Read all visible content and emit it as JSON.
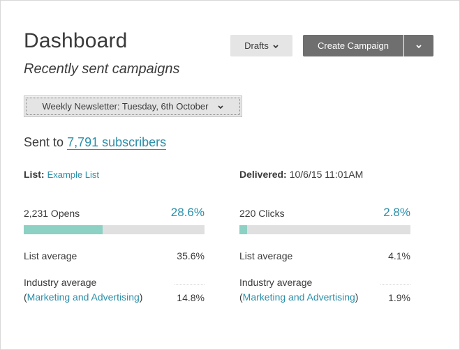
{
  "header": {
    "title": "Dashboard",
    "subtitle": "Recently sent campaigns",
    "drafts_label": "Drafts",
    "create_label": "Create Campaign"
  },
  "campaign_select": {
    "selected": "Weekly Newsletter: Tuesday, 6th October"
  },
  "sent_to": {
    "prefix": "Sent to",
    "link": "7,791 subscribers"
  },
  "meta": {
    "list_label": "List:",
    "list_value": "Example List",
    "delivered_label": "Delivered:",
    "delivered_value": "10/6/15 11:01AM"
  },
  "opens": {
    "label": "2,231 Opens",
    "pct": "28.6%",
    "fraction": 0.437,
    "list_avg_label": "List average",
    "list_avg": "35.6%",
    "industry_label": "Industry average",
    "industry_category": "Marketing and Advertising",
    "industry_avg": "14.8%"
  },
  "clicks": {
    "label": "220 Clicks",
    "pct": "2.8%",
    "fraction": 0.043,
    "list_avg_label": "List average",
    "list_avg": "4.1%",
    "industry_label": "Industry average",
    "industry_category": "Marketing and Advertising",
    "industry_avg": "1.9%"
  },
  "colors": {
    "accent": "#2b8ea8",
    "bar_fill": "#8dd0c4",
    "bar_track": "#e0e0e0",
    "button_dark": "#6f6f6f",
    "button_light": "#e5e5e5"
  },
  "icons": {
    "dropdown": "chevron-down-icon"
  }
}
